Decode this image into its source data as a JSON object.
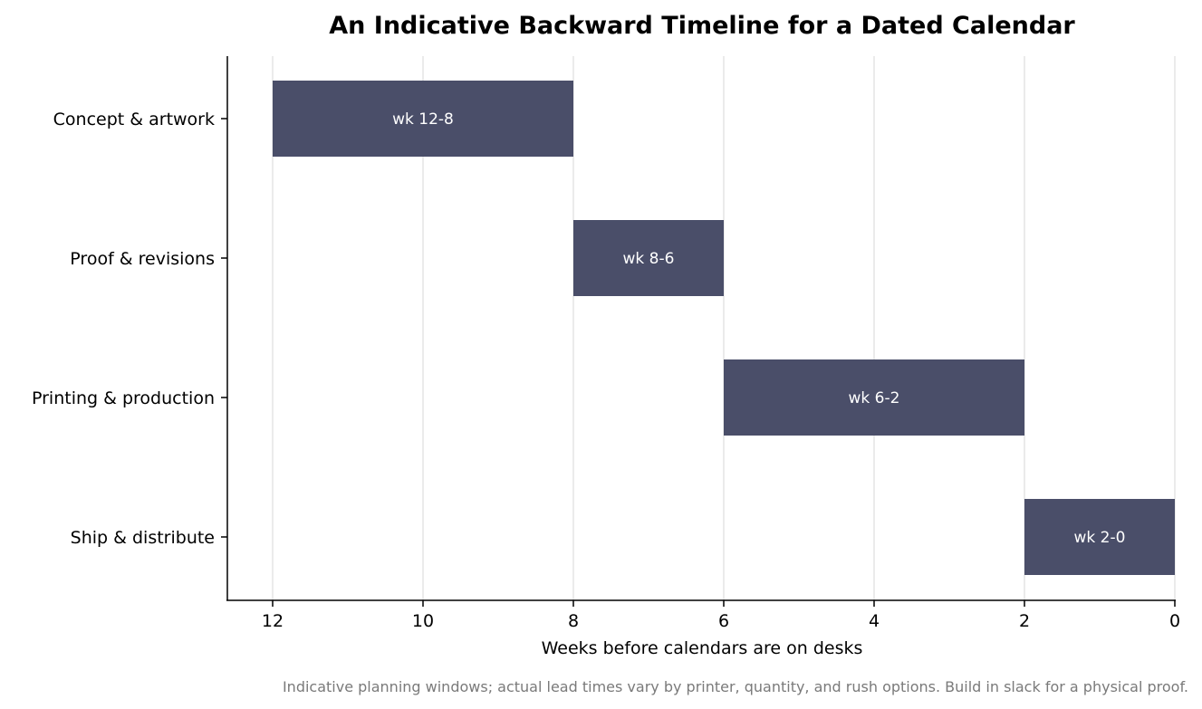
{
  "chart_data": {
    "type": "bar",
    "orientation": "horizontal",
    "title": "An Indicative Backward Timeline for a Dated Calendar",
    "xlabel": "Weeks before calendars are on desks",
    "ylabel": "",
    "xlim": [
      12,
      0
    ],
    "x_reversed": true,
    "x_ticks": [
      12,
      10,
      8,
      6,
      4,
      2,
      0
    ],
    "grid": "vertical",
    "categories": [
      "Concept & artwork",
      "Proof & revisions",
      "Printing & production",
      "Ship & distribute"
    ],
    "tasks": [
      {
        "name": "Concept & artwork",
        "start": 12,
        "end": 8,
        "label": "wk 12-8"
      },
      {
        "name": "Proof & revisions",
        "start": 8,
        "end": 6,
        "label": "wk 8-6"
      },
      {
        "name": "Printing & production",
        "start": 6,
        "end": 2,
        "label": "wk 6-2"
      },
      {
        "name": "Ship & distribute",
        "start": 2,
        "end": 0,
        "label": "wk 2-0"
      }
    ],
    "bar_color": "#4a4e69",
    "grid_color": "#e0e0e0",
    "footnote": "Indicative planning windows; actual lead times vary by printer, quantity, and rush options. Build in slack for a physical proof."
  }
}
